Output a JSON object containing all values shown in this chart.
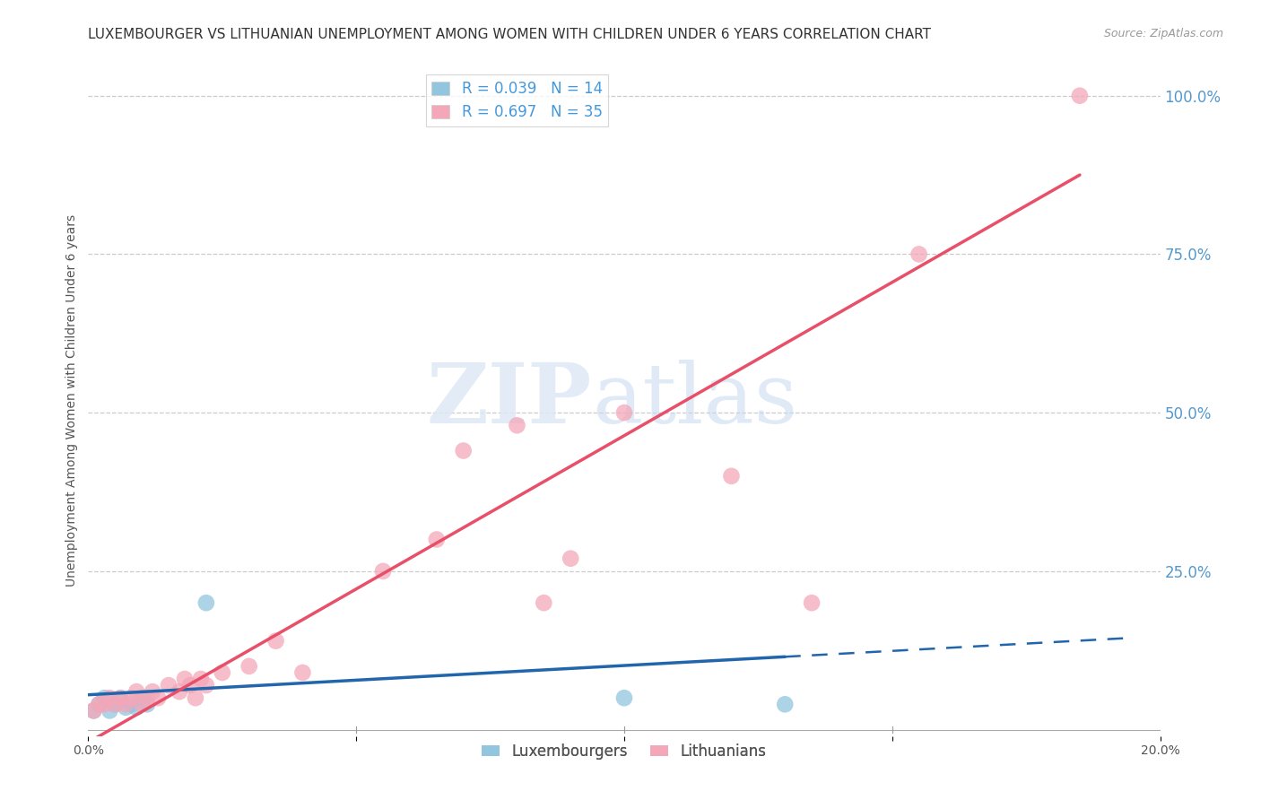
{
  "title": "LUXEMBOURGER VS LITHUANIAN UNEMPLOYMENT AMONG WOMEN WITH CHILDREN UNDER 6 YEARS CORRELATION CHART",
  "source": "Source: ZipAtlas.com",
  "ylabel": "Unemployment Among Women with Children Under 6 years",
  "xlim": [
    0.0,
    0.2
  ],
  "ylim": [
    -0.01,
    1.05
  ],
  "x_ticks": [
    0.0,
    0.05,
    0.1,
    0.15,
    0.2
  ],
  "x_tick_labels": [
    "0.0%",
    "",
    "",
    "",
    "20.0%"
  ],
  "y_ticks_right": [
    0.0,
    0.25,
    0.5,
    0.75,
    1.0
  ],
  "y_tick_labels_right": [
    "",
    "25.0%",
    "50.0%",
    "75.0%",
    "100.0%"
  ],
  "lux_color": "#92c5de",
  "lith_color": "#f4a7b9",
  "lux_trend_color": "#2166ac",
  "lith_trend_color": "#e8506a",
  "lux_R": 0.039,
  "lux_N": 14,
  "lith_R": 0.697,
  "lith_N": 35,
  "watermark_zip": "ZIP",
  "watermark_atlas": "atlas",
  "lux_scatter_x": [
    0.001,
    0.002,
    0.003,
    0.004,
    0.005,
    0.006,
    0.007,
    0.008,
    0.009,
    0.01,
    0.011,
    0.022,
    0.1,
    0.13
  ],
  "lux_scatter_y": [
    0.03,
    0.04,
    0.05,
    0.03,
    0.04,
    0.05,
    0.035,
    0.04,
    0.035,
    0.05,
    0.04,
    0.2,
    0.05,
    0.04
  ],
  "lith_scatter_x": [
    0.001,
    0.002,
    0.003,
    0.004,
    0.005,
    0.006,
    0.007,
    0.008,
    0.009,
    0.01,
    0.011,
    0.012,
    0.013,
    0.015,
    0.017,
    0.018,
    0.019,
    0.02,
    0.021,
    0.022,
    0.025,
    0.03,
    0.035,
    0.04,
    0.055,
    0.065,
    0.07,
    0.08,
    0.085,
    0.09,
    0.1,
    0.12,
    0.135,
    0.155,
    0.185
  ],
  "lith_scatter_y": [
    0.03,
    0.04,
    0.04,
    0.05,
    0.04,
    0.05,
    0.04,
    0.05,
    0.06,
    0.04,
    0.05,
    0.06,
    0.05,
    0.07,
    0.06,
    0.08,
    0.07,
    0.05,
    0.08,
    0.07,
    0.09,
    0.1,
    0.14,
    0.09,
    0.25,
    0.3,
    0.44,
    0.48,
    0.2,
    0.27,
    0.5,
    0.4,
    0.2,
    0.75,
    1.0
  ],
  "lux_trend_x0": 0.0,
  "lux_trend_y0": 0.055,
  "lux_trend_x1": 0.13,
  "lux_trend_y1": 0.115,
  "lux_trend_dash_x0": 0.13,
  "lux_trend_dash_x1": 0.195,
  "lith_trend_x0": 0.0,
  "lith_trend_y0": -0.02,
  "lith_trend_x1": 0.185,
  "lith_trend_y1": 0.875,
  "background_color": "#ffffff",
  "grid_color": "#cccccc",
  "title_fontsize": 11,
  "axis_label_fontsize": 10,
  "tick_fontsize": 10,
  "legend_fontsize": 12
}
